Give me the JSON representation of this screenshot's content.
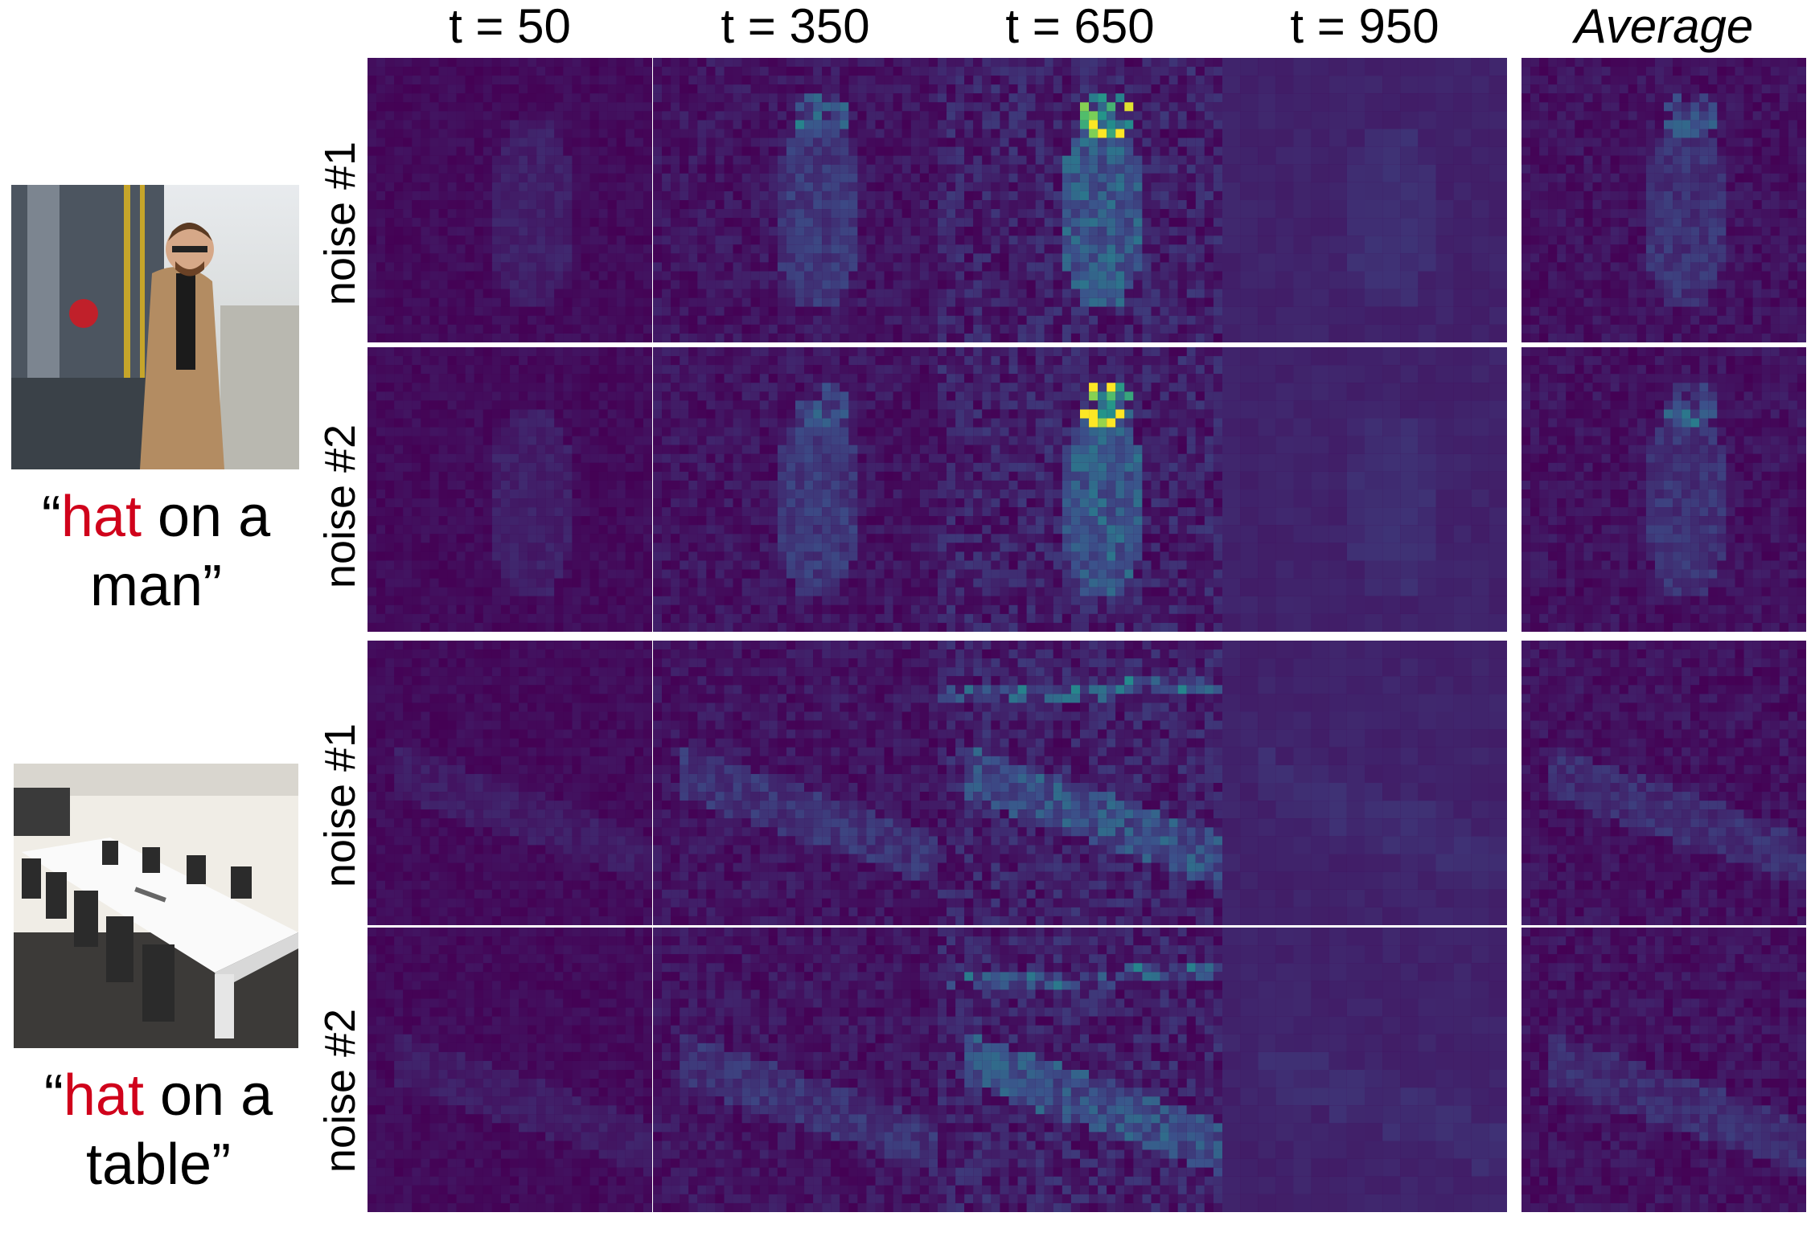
{
  "columns": [
    "t = 50",
    "t = 350",
    "t = 650",
    "t = 950",
    "Average"
  ],
  "row_labels": [
    "noise #1",
    "noise #2",
    "noise #1",
    "noise #2"
  ],
  "examples": [
    {
      "caption": {
        "open_quote": "“",
        "highlight": "hat",
        "line1_rest": " on a",
        "line2": "man”"
      },
      "photo_icon": "man-in-coat-at-train-photo"
    },
    {
      "caption": {
        "open_quote": "“",
        "highlight": "hat",
        "line1_rest": " on a",
        "line2": "table”"
      },
      "photo_icon": "conference-room-table-photo"
    }
  ],
  "colors": {
    "highlight": "#d0021b",
    "heatmap_low": "#440154",
    "heatmap_mid": "#3b528b",
    "heatmap_high": "#fde725"
  }
}
